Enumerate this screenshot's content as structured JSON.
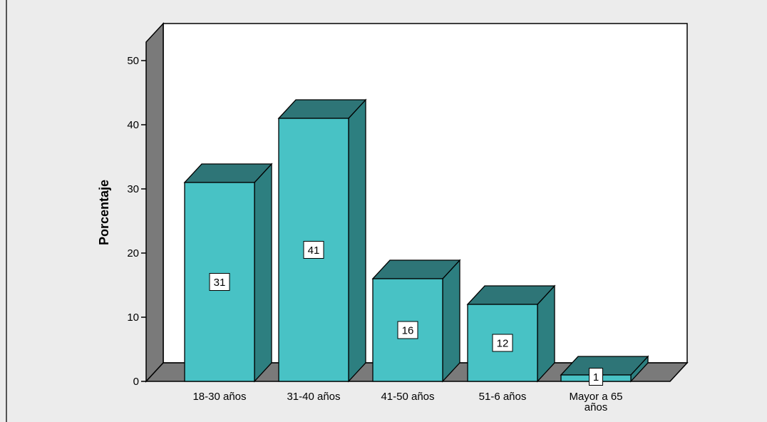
{
  "chart_data": {
    "type": "bar",
    "title": "",
    "xlabel": "",
    "ylabel": "Porcentaje",
    "categories": [
      [
        "18-30 años"
      ],
      [
        "31-40 años"
      ],
      [
        "41-50 años"
      ],
      [
        "51-6 años"
      ],
      [
        "Mayor a 65",
        "años"
      ]
    ],
    "values": [
      31,
      41,
      16,
      12,
      1
    ],
    "value_labels": [
      "31",
      "41",
      "16",
      "12",
      "1"
    ],
    "ylim": [
      0,
      50
    ],
    "yticks": [
      {
        "value": 0,
        "label": "0"
      },
      {
        "value": 10,
        "label": "10"
      },
      {
        "value": 20,
        "label": "20"
      },
      {
        "value": 30,
        "label": "30"
      },
      {
        "value": 40,
        "label": "40"
      },
      {
        "value": 50,
        "label": "50"
      }
    ],
    "grid": false,
    "style": "3d",
    "colors": {
      "page_bg": "#ececec",
      "plot_bg": "#ffffff",
      "wall": "#7a7a7a",
      "bar_front": "#48c2c5",
      "bar_side": "#2d7f80",
      "bar_top": "#2e7577",
      "outline": "#000000"
    }
  }
}
